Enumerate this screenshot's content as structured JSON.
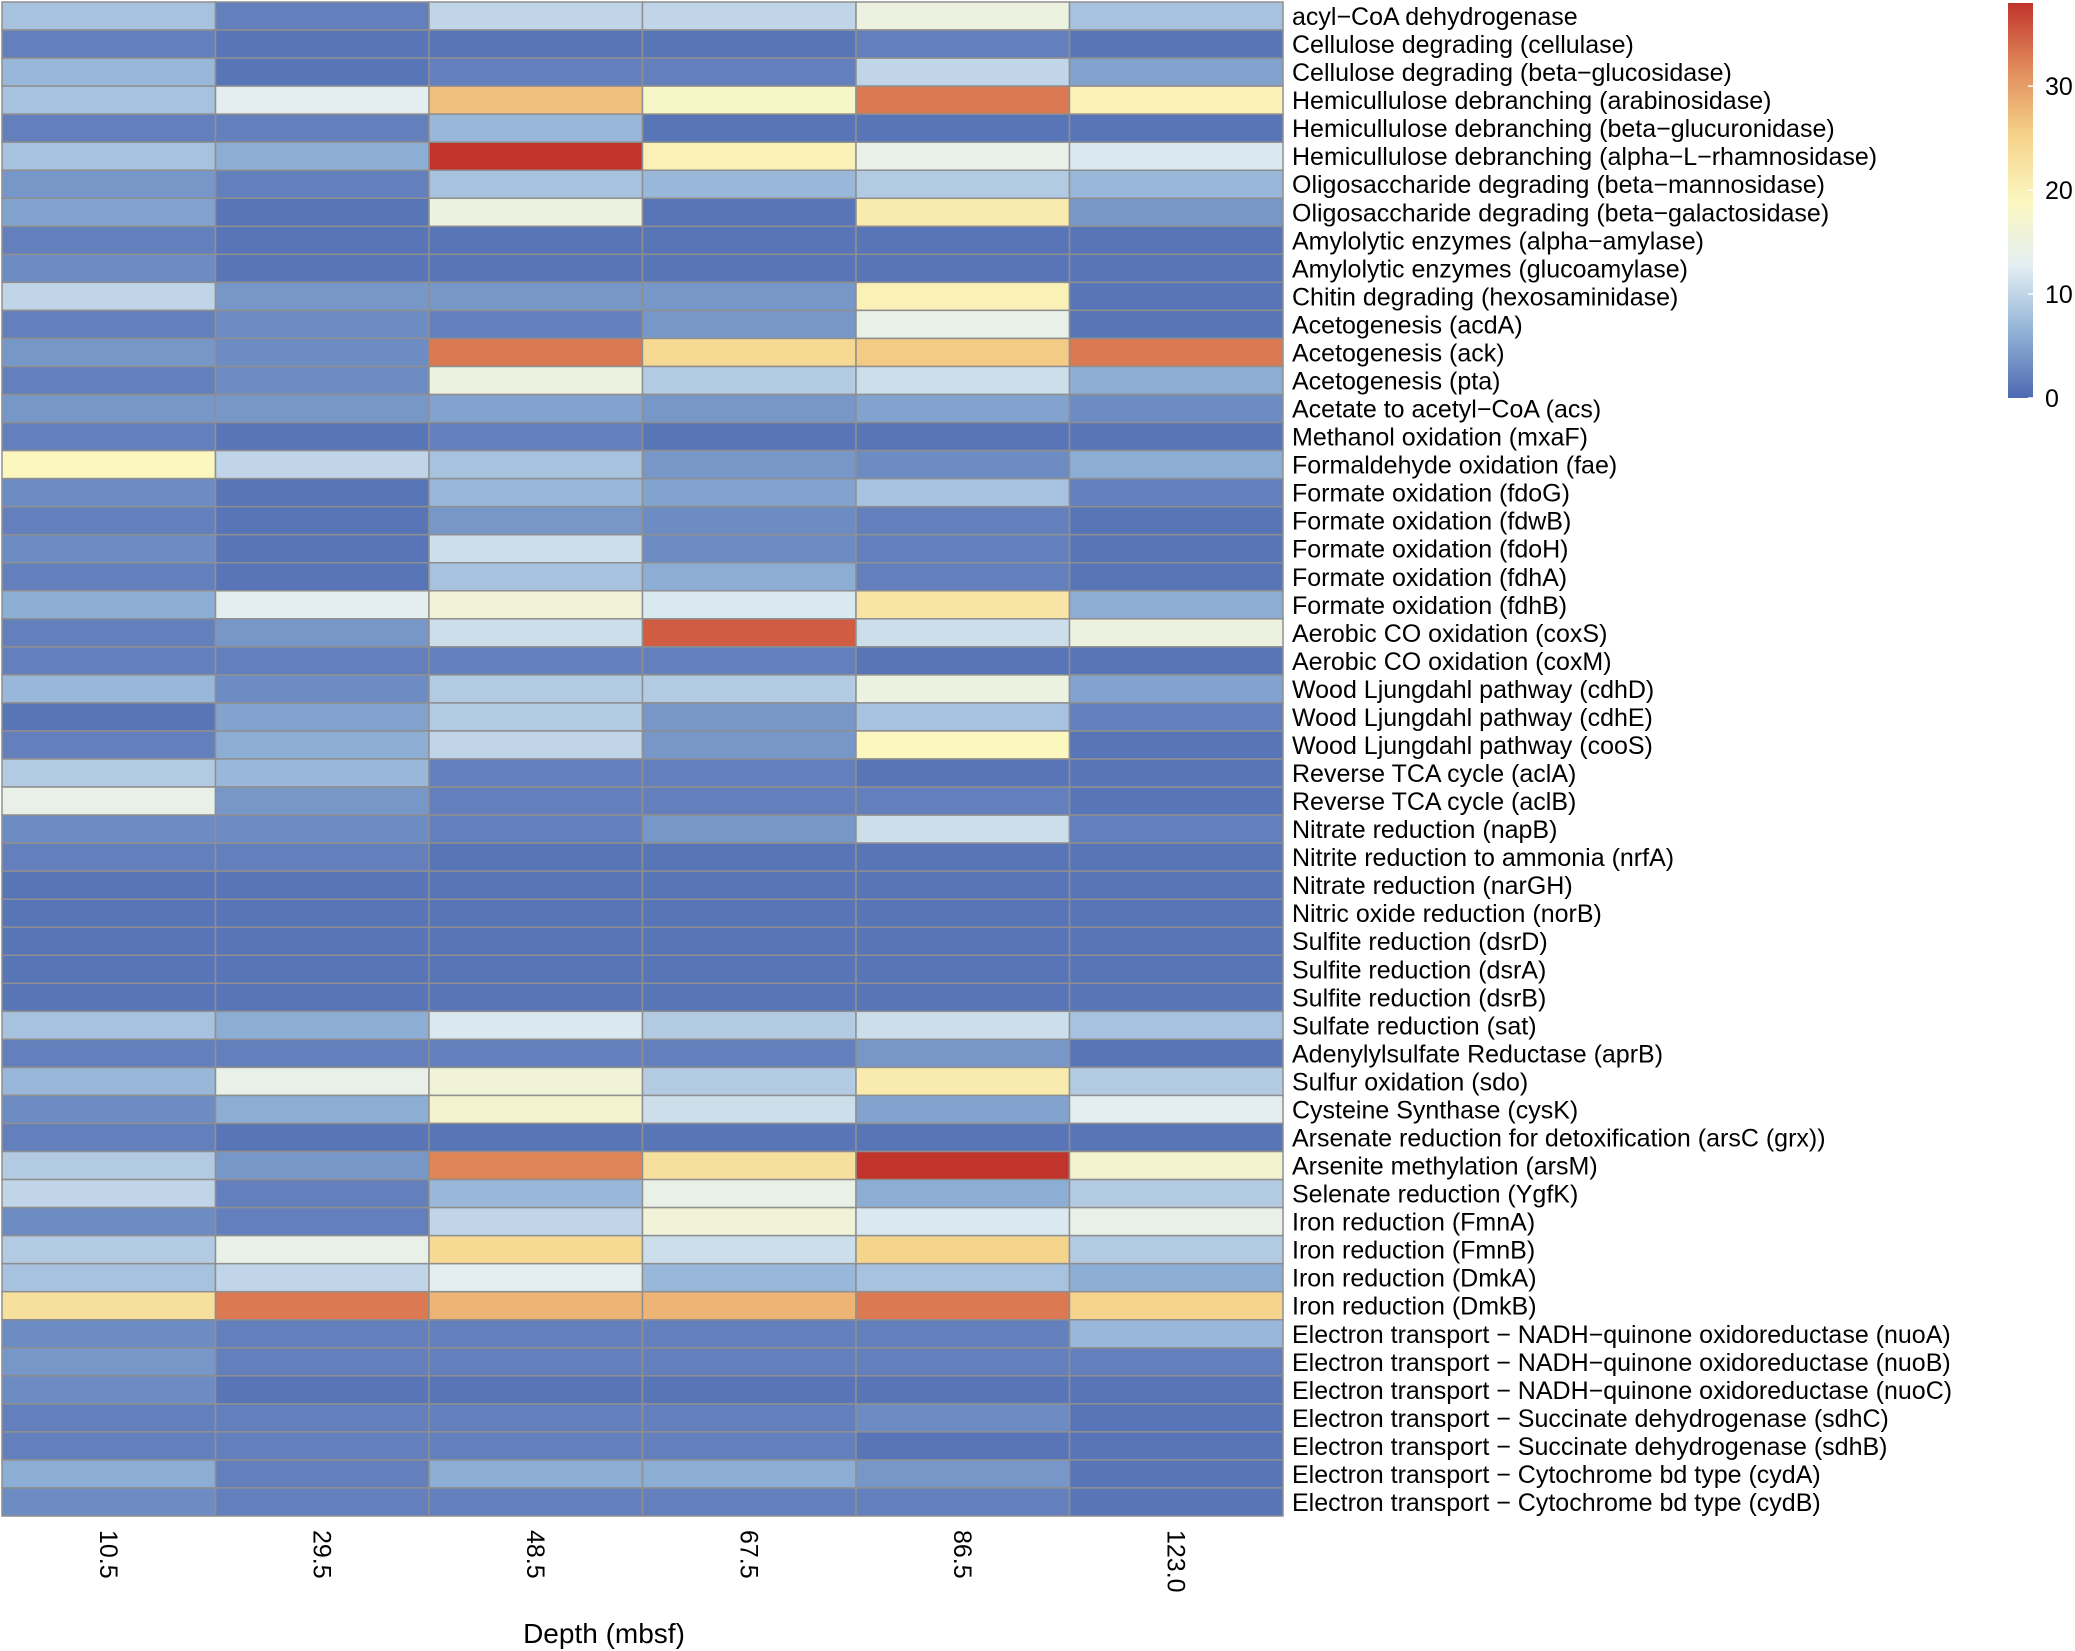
{
  "chart_data": {
    "type": "heatmap",
    "xlabel": "Depth (mbsf)",
    "columns": [
      "10.5",
      "29.5",
      "48.5",
      "67.5",
      "86.5",
      "123.0"
    ],
    "rows": [
      "acyl−CoA dehydrogenase",
      "Cellulose degrading (cellulase)",
      "Cellulose degrading (beta−glucosidase)",
      "Hemicullulose debranching (arabinosidase)",
      "Hemicullulose debranching (beta−glucuronidase)",
      "Hemicullulose debranching (alpha−L−rhamnosidase)",
      "Oligosaccharide degrading (beta−mannosidase)",
      "Oligosaccharide degrading (beta−galactosidase)",
      "Amylolytic enzymes (alpha−amylase)",
      "Amylolytic enzymes (glucoamylase)",
      "Chitin degrading (hexosaminidase)",
      "Acetogenesis (acdA)",
      "Acetogenesis (ack)",
      "Acetogenesis (pta)",
      "Acetate to acetyl−CoA (acs)",
      "Methanol oxidation (mxaF)",
      "Formaldehyde oxidation (fae)",
      "Formate oxidation (fdoG)",
      "Formate oxidation (fdwB)",
      "Formate oxidation (fdoH)",
      "Formate oxidation (fdhA)",
      "Formate oxidation (fdhB)",
      "Aerobic CO oxidation (coxS)",
      "Aerobic CO oxidation (coxM)",
      "Wood Ljungdahl pathway (cdhD)",
      "Wood Ljungdahl pathway (cdhE)",
      "Wood Ljungdahl pathway (cooS)",
      "Reverse TCA cycle (aclA)",
      "Reverse TCA cycle (aclB)",
      "Nitrate reduction (napB)",
      "Nitrite reduction to ammonia (nrfA)",
      "Nitrate reduction (narGH)",
      "Nitric oxide reduction (norB)",
      "Sulfite reduction (dsrD)",
      "Sulfite reduction (dsrA)",
      "Sulfite reduction (dsrB)",
      "Sulfate reduction (sat)",
      "Adenylylsulfate Reductase (aprB)",
      "Sulfur oxidation (sdo)",
      "Cysteine Synthase (cysK)",
      "Arsenate reduction for detoxification (arsC (grx))",
      "Arsenite methylation (arsM)",
      "Selenate reduction (YgfK)",
      "Iron reduction (FmnA)",
      "Iron reduction (FmnB)",
      "Iron reduction (DmkA)",
      "Iron reduction (DmkB)",
      "Electron transport − NADH−quinone oxidoreductase (nuoA)",
      "Electron transport − NADH−quinone oxidoreductase (nuoB)",
      "Electron transport − NADH−quinone oxidoreductase (nuoC)",
      "Electron transport − Succinate dehydrogenase (sdhC)",
      "Electron transport − Succinate dehydrogenase (sdhB)",
      "Electron transport − Cytochrome bd type (cydA)",
      "Electron transport − Cytochrome bd type (cydB)"
    ],
    "values": [
      [
        8,
        2,
        10,
        10,
        15,
        8
      ],
      [
        2,
        1,
        1,
        1,
        2,
        1
      ],
      [
        7,
        1,
        2,
        2,
        10,
        5
      ],
      [
        8,
        13,
        27,
        18,
        33,
        20
      ],
      [
        2,
        2,
        7,
        1,
        1,
        1
      ],
      [
        8,
        6,
        38,
        20,
        14,
        12
      ],
      [
        4,
        2,
        8,
        7,
        9,
        7
      ],
      [
        5,
        1,
        15,
        1,
        21,
        4
      ],
      [
        2,
        1,
        1,
        1,
        1,
        1
      ],
      [
        3,
        1,
        1,
        1,
        1,
        1
      ],
      [
        10,
        4,
        4,
        4,
        20,
        1
      ],
      [
        2,
        3,
        2,
        4,
        14,
        1
      ],
      [
        4,
        3,
        33,
        24,
        26,
        33
      ],
      [
        2,
        3,
        15,
        9,
        11,
        6
      ],
      [
        4,
        4,
        5,
        4,
        5,
        3
      ],
      [
        2,
        1,
        2,
        1,
        1,
        1
      ],
      [
        19,
        10,
        8,
        4,
        3,
        6
      ],
      [
        3,
        1,
        7,
        5,
        8,
        2
      ],
      [
        2,
        1,
        4,
        3,
        2,
        1
      ],
      [
        3,
        1,
        11,
        3,
        2,
        1
      ],
      [
        2,
        1,
        8,
        6,
        2,
        1
      ],
      [
        6,
        13,
        16,
        12,
        22,
        6
      ],
      [
        2,
        4,
        11,
        35,
        11,
        15
      ],
      [
        2,
        2,
        2,
        2,
        1,
        1
      ],
      [
        7,
        3,
        9,
        9,
        15,
        5
      ],
      [
        1,
        5,
        9,
        4,
        8,
        2
      ],
      [
        2,
        6,
        10,
        4,
        19,
        1
      ],
      [
        9,
        7,
        2,
        2,
        1,
        1
      ],
      [
        14,
        4,
        2,
        2,
        2,
        1
      ],
      [
        3,
        3,
        2,
        4,
        11,
        2
      ],
      [
        2,
        2,
        1,
        1,
        1,
        1
      ],
      [
        1,
        1,
        1,
        1,
        1,
        1
      ],
      [
        1,
        1,
        1,
        1,
        1,
        1
      ],
      [
        1,
        1,
        1,
        1,
        1,
        1
      ],
      [
        1,
        1,
        1,
        1,
        1,
        1
      ],
      [
        1,
        1,
        1,
        1,
        1,
        1
      ],
      [
        8,
        6,
        12,
        9,
        11,
        8
      ],
      [
        2,
        2,
        2,
        2,
        4,
        1
      ],
      [
        7,
        14,
        16,
        9,
        21,
        9
      ],
      [
        3,
        6,
        17,
        11,
        5,
        13
      ],
      [
        2,
        1,
        1,
        1,
        1,
        1
      ],
      [
        9,
        4,
        32,
        23,
        38,
        17
      ],
      [
        10,
        2,
        7,
        14,
        6,
        9
      ],
      [
        3,
        2,
        10,
        16,
        12,
        14
      ],
      [
        9,
        14,
        24,
        11,
        25,
        9
      ],
      [
        8,
        10,
        13,
        7,
        8,
        6
      ],
      [
        23,
        33,
        28,
        28,
        33,
        25
      ],
      [
        3,
        2,
        2,
        2,
        2,
        7
      ],
      [
        4,
        2,
        2,
        2,
        2,
        2
      ],
      [
        3,
        1,
        1,
        1,
        1,
        1
      ],
      [
        2,
        2,
        2,
        2,
        3,
        1
      ],
      [
        2,
        2,
        2,
        2,
        1,
        1
      ],
      [
        6,
        2,
        6,
        6,
        4,
        1
      ],
      [
        3,
        2,
        2,
        2,
        2,
        1
      ]
    ],
    "colorbar": {
      "ticks": [
        0,
        10,
        20,
        30
      ],
      "range": [
        0,
        38
      ],
      "colors": [
        "#4e69b2",
        "#90b2d6",
        "#e3eef3",
        "#fbf7bf",
        "#f5d289",
        "#e18b5c",
        "#c0342b"
      ]
    }
  }
}
